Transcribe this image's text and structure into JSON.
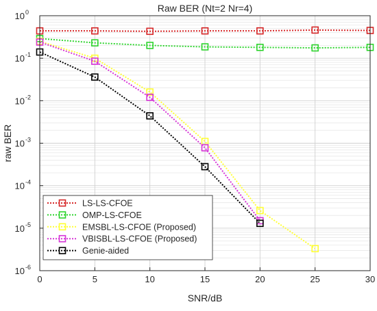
{
  "chart_data": {
    "type": "line",
    "title": "Raw BER (Nt=2 Nr=4)",
    "xlabel": "SNR/dB",
    "ylabel": "raw BER",
    "xlim": [
      0,
      30
    ],
    "ylim": [
      1e-06,
      1
    ],
    "yscale": "log",
    "grid": true,
    "x_ticks": [
      "0",
      "5",
      "10",
      "15",
      "20",
      "25",
      "30"
    ],
    "y_ticks": [
      {
        "base": "10",
        "exp": "0"
      },
      {
        "base": "10",
        "exp": "-1"
      },
      {
        "base": "10",
        "exp": "-2"
      },
      {
        "base": "10",
        "exp": "-3"
      },
      {
        "base": "10",
        "exp": "-4"
      },
      {
        "base": "10",
        "exp": "-5"
      },
      {
        "base": "10",
        "exp": "-6"
      }
    ],
    "legend_position": "bottom-left",
    "series": [
      {
        "name": "LS-LS-CFOE",
        "color": "#d62728",
        "x": [
          0,
          5,
          10,
          15,
          20,
          25,
          30
        ],
        "y": [
          0.44,
          0.44,
          0.43,
          0.44,
          0.44,
          0.46,
          0.45
        ]
      },
      {
        "name": "OMP-LS-CFOE",
        "color": "#2ed42e",
        "x": [
          0,
          5,
          10,
          15,
          20,
          25,
          30
        ],
        "y": [
          0.29,
          0.23,
          0.2,
          0.185,
          0.18,
          0.175,
          0.18
        ]
      },
      {
        "name": "EMSBL-LS-CFOE (Proposed)",
        "color": "#ffff33",
        "x": [
          0,
          5,
          10,
          15,
          20,
          25
        ],
        "y": [
          0.25,
          0.1,
          0.016,
          0.0011,
          2.6e-05,
          3.3e-06
        ]
      },
      {
        "name": "VBISBL-LS-CFOE (Proposed)",
        "color": "#d633d6",
        "x": [
          0,
          5,
          10,
          15,
          20
        ],
        "y": [
          0.24,
          0.085,
          0.012,
          0.00078,
          1.5e-05
        ]
      },
      {
        "name": "Genie-aided",
        "color": "#000000",
        "x": [
          0,
          5,
          10,
          15,
          20
        ],
        "y": [
          0.14,
          0.036,
          0.0044,
          0.00028,
          1.3e-05
        ]
      }
    ]
  }
}
